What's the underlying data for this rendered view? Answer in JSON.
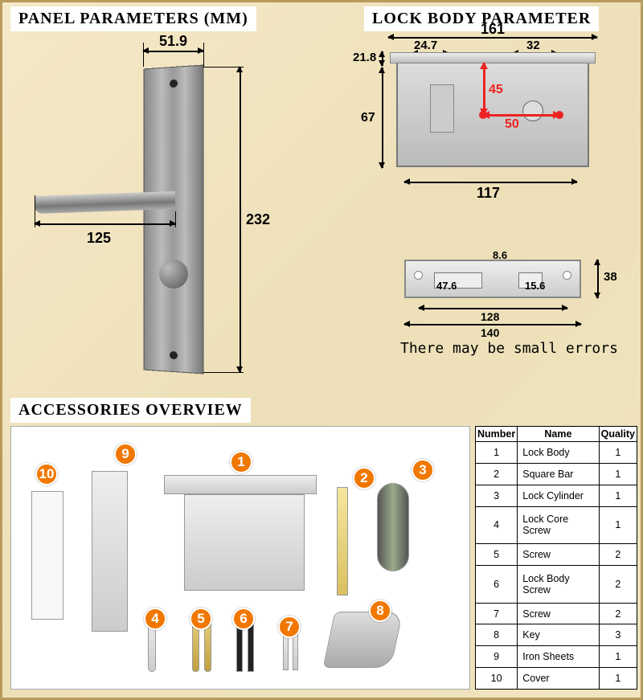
{
  "panel": {
    "title": "PANEL PARAMETERS (MM)",
    "dims": {
      "width_top": "51.9",
      "height": "232",
      "handle_reach": "125"
    }
  },
  "lockbody": {
    "title": "LOCK BODY PARAMETER",
    "dims": {
      "overall_width": "161",
      "latch_w": "24.7",
      "bolt_w": "32",
      "face_h": "21.8",
      "body_h": "67",
      "backset": "50",
      "cc": "45",
      "body_w": "117"
    },
    "strike": {
      "slot_a": "47.6",
      "gap": "8.6",
      "slot_b": "15.6",
      "height": "38",
      "inner_w": "128",
      "outer_w": "140"
    },
    "note": "There may be small errors"
  },
  "accessories": {
    "title": "ACCESSORIES OVERVIEW",
    "badges": [
      "1",
      "2",
      "3",
      "4",
      "5",
      "6",
      "7",
      "8",
      "9",
      "10"
    ],
    "table": {
      "headers": [
        "Number",
        "Name",
        "Quality"
      ],
      "rows": [
        [
          "1",
          "Lock Body",
          "1"
        ],
        [
          "2",
          "Square Bar",
          "1"
        ],
        [
          "3",
          "Lock Cylinder",
          "1"
        ],
        [
          "4",
          "Lock Core Screw",
          "1"
        ],
        [
          "5",
          "Screw",
          "2"
        ],
        [
          "6",
          "Lock Body Screw",
          "2"
        ],
        [
          "7",
          "Screw",
          "2"
        ],
        [
          "8",
          "Key",
          "3"
        ],
        [
          "9",
          "Iron Sheets",
          "1"
        ],
        [
          "10",
          "Cover",
          "1"
        ]
      ]
    }
  },
  "colors": {
    "badge": "#f07800",
    "red": "#e22222",
    "background": "#f0e4c0",
    "border": "#b89a5a"
  }
}
